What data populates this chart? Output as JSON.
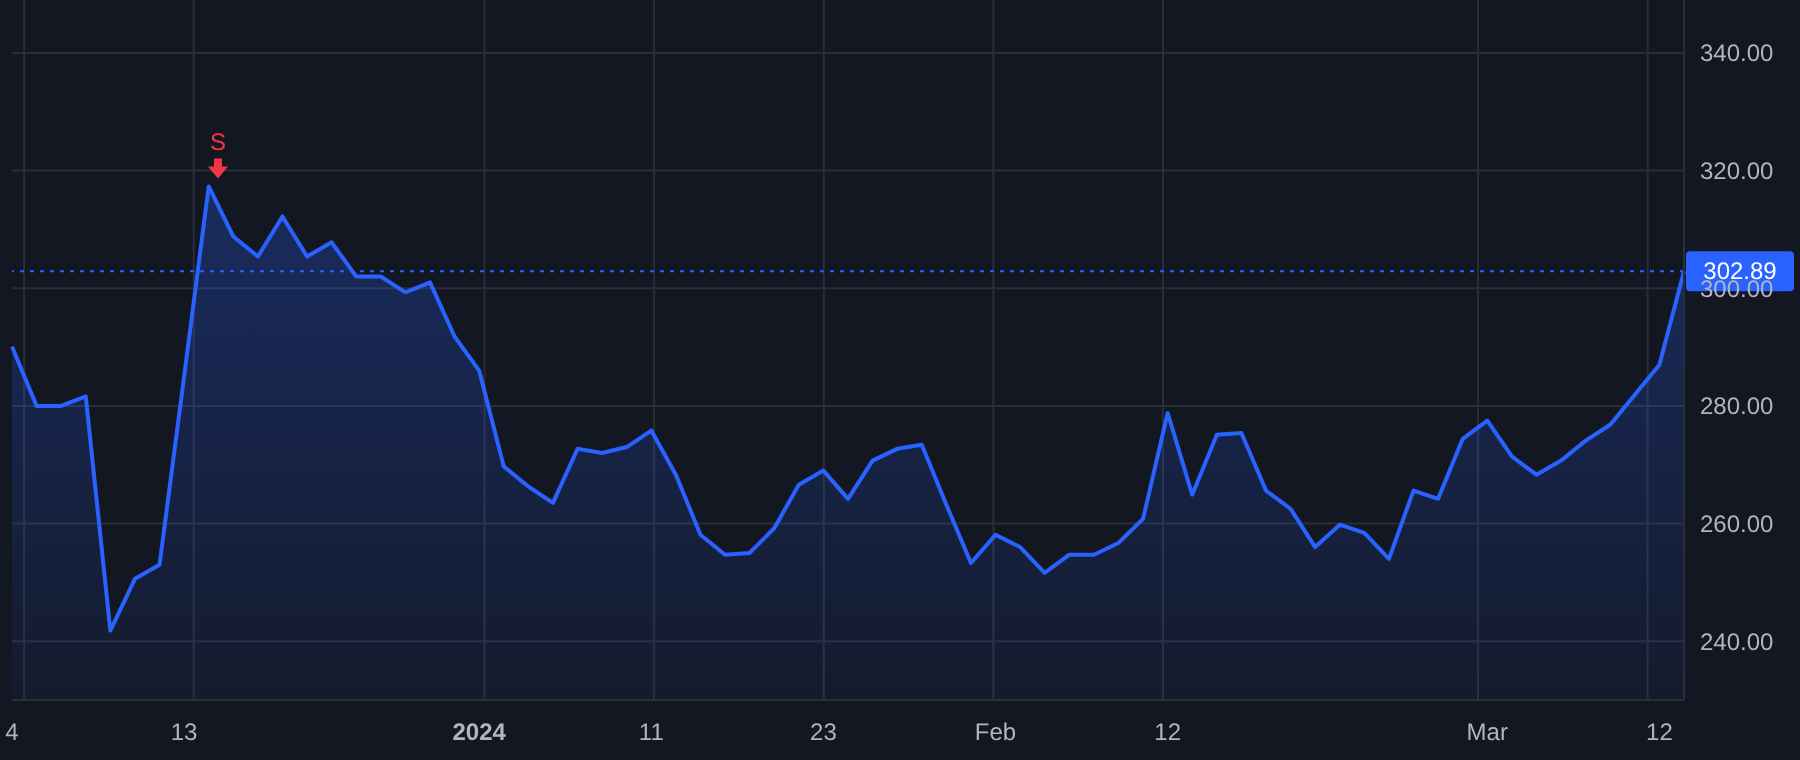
{
  "chart_data": {
    "type": "area",
    "categories": [
      "4",
      null,
      null,
      null,
      null,
      null,
      null,
      "13",
      null,
      null,
      null,
      null,
      null,
      null,
      null,
      null,
      null,
      null,
      null,
      "2024",
      null,
      null,
      null,
      null,
      null,
      null,
      "11",
      null,
      null,
      null,
      null,
      null,
      null,
      "23",
      null,
      null,
      null,
      null,
      null,
      null,
      "Feb",
      null,
      null,
      null,
      null,
      null,
      null,
      "12",
      null,
      null,
      null,
      null,
      null,
      null,
      null,
      null,
      null,
      null,
      null,
      null,
      "Mar",
      null,
      null,
      null,
      null,
      null,
      null,
      "12",
      null
    ],
    "series": [
      {
        "color": "#2962ff",
        "values": [
          290.1,
          280,
          280,
          281.6,
          241.8,
          250.6,
          253,
          285,
          317.3,
          308.8,
          305.4,
          312.2,
          305.4,
          307.8,
          302,
          302,
          299.3,
          301,
          291.8,
          286,
          269.7,
          266.3,
          263.5,
          272.7,
          272,
          273,
          275.8,
          268.3,
          258.1,
          254.7,
          255,
          259.2,
          266.6,
          269,
          264.2,
          270.7,
          272.7,
          273.4,
          263.2,
          253.3,
          258.1,
          256,
          251.6,
          254.7,
          254.7,
          256.7,
          260.8,
          278.8,
          264.9,
          275.1,
          275.4,
          265.6,
          262.5,
          256,
          259.8,
          258.4,
          254,
          265.6,
          264.2,
          274.4,
          277.5,
          271.4,
          268.3,
          270.7,
          274.1,
          276.8,
          281.9,
          287,
          302.9
        ]
      }
    ],
    "ylim": [
      230,
      349
    ],
    "yticks": [
      {
        "value": 240,
        "label": "240.00"
      },
      {
        "value": 260,
        "label": "260.00"
      },
      {
        "value": 280,
        "label": "280.00"
      },
      {
        "value": 300,
        "label": "300.00"
      },
      {
        "value": 320,
        "label": "320.00"
      },
      {
        "value": 340,
        "label": "340.00"
      }
    ],
    "grid": true,
    "ref_lines": [
      {
        "axis": "y",
        "value": 302.89,
        "label": "302.89",
        "color": "#2962ff",
        "line_style": "dotted"
      }
    ],
    "annotations": [
      {
        "text": "S",
        "y": 317.3
      }
    ]
  }
}
